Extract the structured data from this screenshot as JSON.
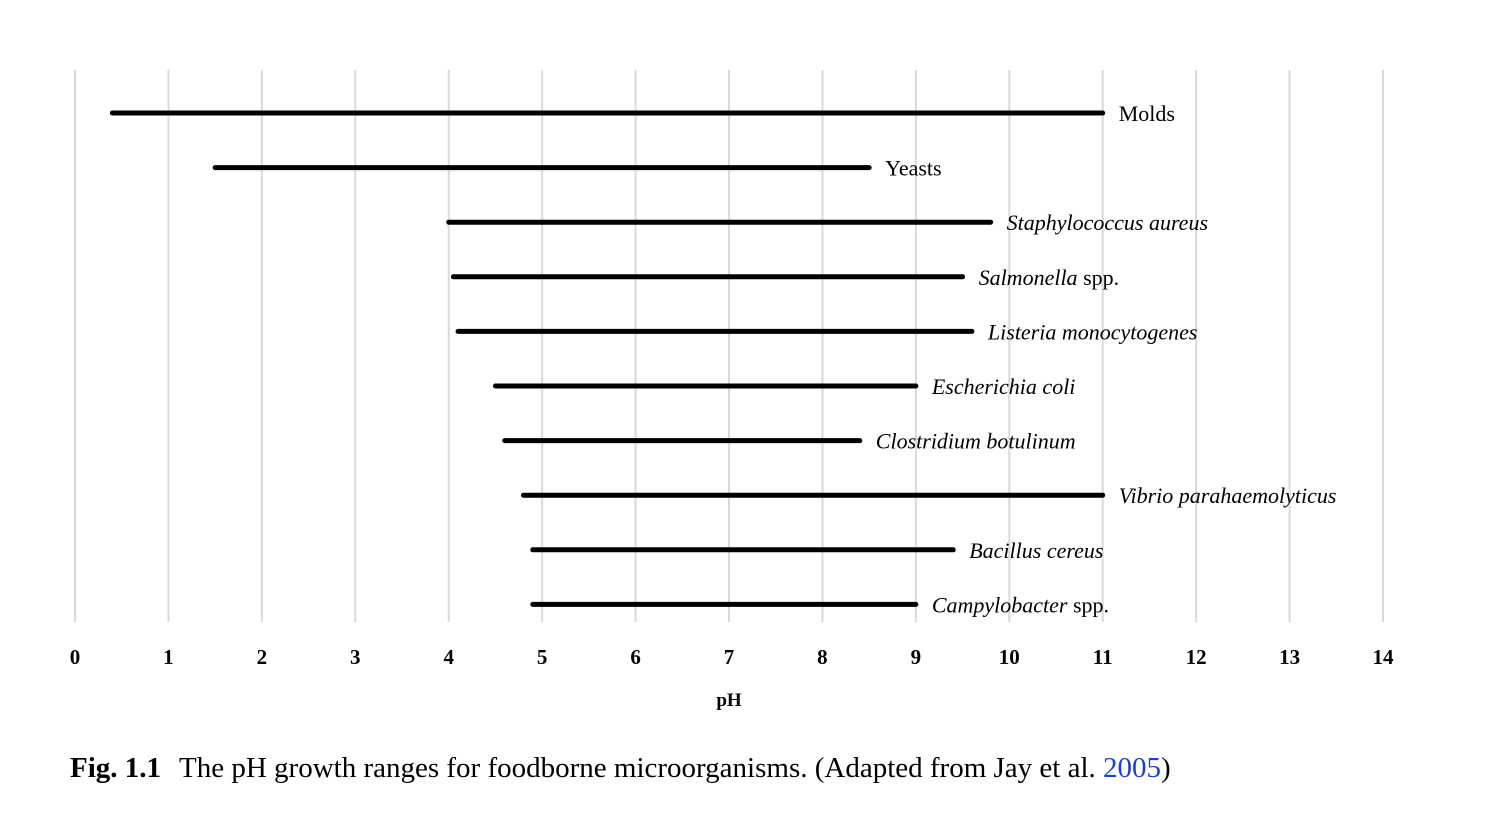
{
  "chart_data": {
    "type": "range-bar",
    "xlabel": "pH",
    "xlim": [
      0,
      14
    ],
    "ticks": [
      0,
      1,
      2,
      3,
      4,
      5,
      6,
      7,
      8,
      9,
      10,
      11,
      12,
      13,
      14
    ],
    "grid": "vertical",
    "series": [
      {
        "name": "Molds",
        "italic_parts": [],
        "min": 0.4,
        "max": 11.0
      },
      {
        "name": "Yeasts",
        "italic_parts": [],
        "min": 1.5,
        "max": 8.5
      },
      {
        "name": "Staphylococcus aureus",
        "parts": [
          "Staphylococcus aureus"
        ],
        "italic_parts": [
          true
        ],
        "min": 4.0,
        "max": 9.8
      },
      {
        "name": "Salmonella spp.",
        "parts": [
          "Salmonella",
          " spp."
        ],
        "italic_parts": [
          true,
          false
        ],
        "min": 4.05,
        "max": 9.5
      },
      {
        "name": "Listeria monocytogenes",
        "parts": [
          "Listeria monocytogenes"
        ],
        "italic_parts": [
          true
        ],
        "min": 4.1,
        "max": 9.6
      },
      {
        "name": "Escherichia coli",
        "parts": [
          "Escherichia coli"
        ],
        "italic_parts": [
          true
        ],
        "min": 4.5,
        "max": 9.0
      },
      {
        "name": "Clostridium botulinum",
        "parts": [
          "Clostridium botulinum"
        ],
        "italic_parts": [
          true
        ],
        "min": 4.6,
        "max": 8.4
      },
      {
        "name": "Vibrio parahaemolyticus",
        "parts": [
          "Vibrio parahaemolyticus"
        ],
        "italic_parts": [
          true
        ],
        "min": 4.8,
        "max": 11.0
      },
      {
        "name": "Bacillus cereus",
        "parts": [
          "Bacillus cereus"
        ],
        "italic_parts": [
          true
        ],
        "min": 4.9,
        "max": 9.4
      },
      {
        "name": "Campylobacter spp.",
        "parts": [
          "Campylobacter",
          " spp."
        ],
        "italic_parts": [
          true,
          false
        ],
        "min": 4.9,
        "max": 9.0
      }
    ]
  },
  "caption": {
    "fig_num": "Fig. 1.1",
    "text": "The pH growth ranges for foodborne microorganisms. (Adapted from Jay et al. ",
    "cite": "2005",
    "close": ")"
  }
}
